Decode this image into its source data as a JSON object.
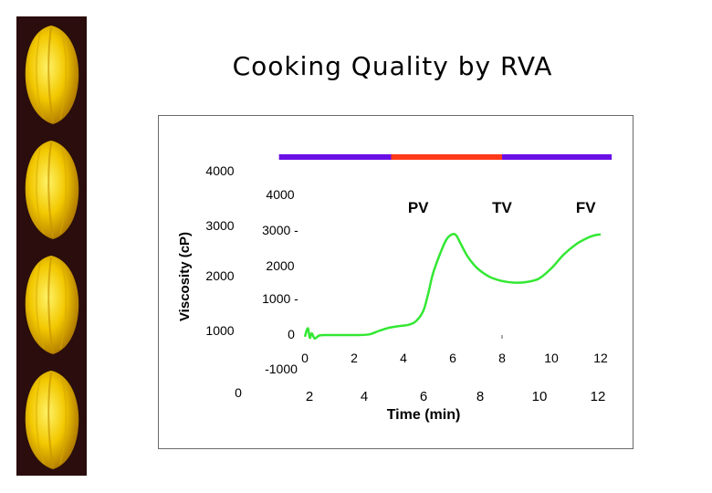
{
  "slide": {
    "title": "Cooking Quality by RVA",
    "image_strip": {
      "count": 4,
      "subject": "rice-kernel"
    }
  },
  "chart_data": {
    "type": "line",
    "title": "",
    "xlabel": "Time (min)",
    "ylabel": "Viscosity (cP)",
    "outer_y_ticks": [
      "4000",
      "3000",
      "2000",
      "1000",
      "0"
    ],
    "outer_x_ticks": [
      "2",
      "4",
      "6",
      "8",
      "10",
      "12"
    ],
    "inner_y_ticks": [
      "4000",
      "3000 -",
      "2000",
      "1000 -",
      "0",
      "-1000"
    ],
    "inner_x_ticks": [
      "0",
      "2",
      "4",
      "6",
      "8",
      "10",
      "12"
    ],
    "xlim": [
      0,
      12.5
    ],
    "ylim": [
      -1000,
      4000
    ],
    "series": [
      {
        "color": "#33e833",
        "x": [
          0,
          0.12,
          0.2,
          0.28,
          0.4,
          0.6,
          1,
          2,
          2.6,
          3.0,
          3.4,
          3.8,
          4.2,
          4.5,
          4.8,
          5.0,
          5.2,
          5.5,
          5.75,
          6.0,
          6.15,
          6.3,
          6.6,
          7.0,
          7.5,
          8.0,
          8.5,
          9.0,
          9.5,
          10.0,
          10.5,
          11.0,
          11.5,
          11.8,
          12.0
        ],
        "y": [
          -50,
          200,
          -80,
          50,
          -100,
          -10,
          0,
          0,
          20,
          120,
          210,
          260,
          300,
          400,
          700,
          1200,
          1800,
          2400,
          2800,
          2950,
          2900,
          2700,
          2300,
          1950,
          1700,
          1580,
          1530,
          1550,
          1650,
          1950,
          2350,
          2650,
          2850,
          2920,
          2940
        ]
      }
    ],
    "phase_bar": [
      {
        "from": -1.05,
        "to": 3.5,
        "color": "#6a0fe6"
      },
      {
        "from": 3.5,
        "to": 8.0,
        "color": "#ff3a1a"
      },
      {
        "from": 8.0,
        "to": 12.45,
        "color": "#6a0fe6"
      }
    ],
    "annotations": [
      {
        "text": "PV",
        "x": 4.6
      },
      {
        "text": "TV",
        "x": 8.0
      },
      {
        "text": "FV",
        "x": 11.4
      }
    ]
  }
}
